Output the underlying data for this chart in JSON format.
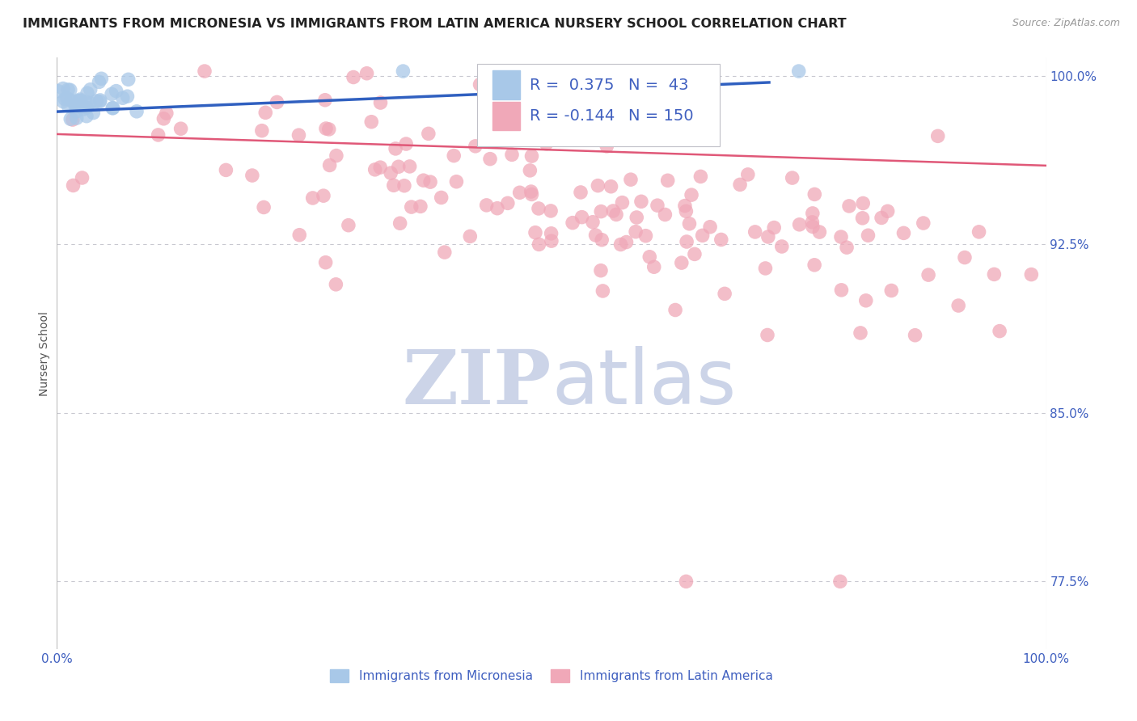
{
  "title": "IMMIGRANTS FROM MICRONESIA VS IMMIGRANTS FROM LATIN AMERICA NURSERY SCHOOL CORRELATION CHART",
  "source": "Source: ZipAtlas.com",
  "ylabel": "Nursery School",
  "xlim": [
    0.0,
    1.0
  ],
  "ylim": [
    0.745,
    1.008
  ],
  "yticks": [
    0.775,
    0.85,
    0.925,
    1.0
  ],
  "ytick_labels": [
    "77.5%",
    "85.0%",
    "92.5%",
    "100.0%"
  ],
  "legend_labels": [
    "Immigrants from Micronesia",
    "Immigrants from Latin America"
  ],
  "R_micronesia": 0.375,
  "N_micronesia": 43,
  "R_latin": -0.144,
  "N_latin": 150,
  "blue_color": "#a8c8e8",
  "pink_color": "#f0a8b8",
  "blue_line_color": "#3060c0",
  "pink_line_color": "#e05878",
  "axis_color": "#4060c0",
  "watermark_color": "#ccd4e8",
  "background_color": "#ffffff",
  "grid_color": "#c8c8d0",
  "seed_mic": 7,
  "seed_lat": 42
}
